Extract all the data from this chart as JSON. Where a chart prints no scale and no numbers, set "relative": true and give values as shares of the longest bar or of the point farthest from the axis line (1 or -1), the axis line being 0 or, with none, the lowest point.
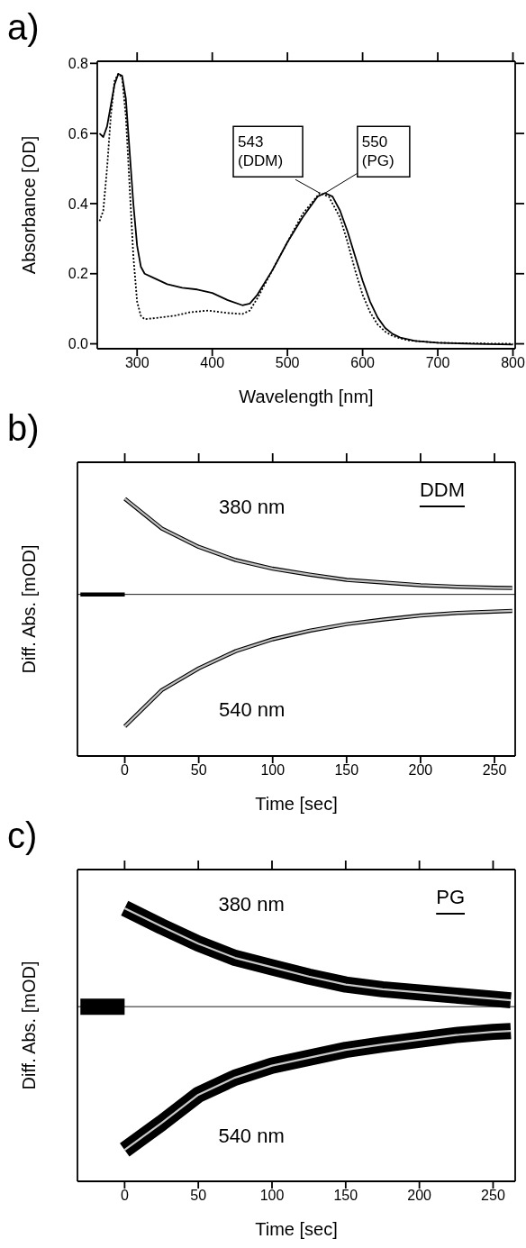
{
  "chart_data": [
    {
      "type": "line",
      "title": "a)",
      "xlabel": "Wavelength [nm]",
      "ylabel": "Absorbance [OD]",
      "xlim": [
        247,
        803
      ],
      "ylim": [
        -0.014,
        0.806
      ],
      "xticks": [
        300,
        400,
        500,
        600,
        700,
        800
      ],
      "yticks": [
        {
          "value": 0,
          "label": "0.0"
        },
        0.2,
        0.4,
        0.6,
        0.8
      ],
      "series": [
        {
          "color": "#000000",
          "line_style": "solid",
          "x": [
            250,
            255,
            260,
            265,
            270,
            275,
            280,
            285,
            290,
            295,
            300,
            305,
            310,
            320,
            340,
            360,
            380,
            400,
            420,
            440,
            450,
            460,
            480,
            500,
            520,
            540,
            550,
            560,
            570,
            580,
            590,
            600,
            610,
            620,
            630,
            640,
            650,
            670,
            700,
            750,
            800
          ],
          "values": [
            0.6,
            0.59,
            0.62,
            0.68,
            0.74,
            0.77,
            0.765,
            0.7,
            0.55,
            0.4,
            0.28,
            0.22,
            0.2,
            0.19,
            0.17,
            0.16,
            0.155,
            0.145,
            0.125,
            0.11,
            0.115,
            0.14,
            0.21,
            0.29,
            0.36,
            0.42,
            0.43,
            0.42,
            0.38,
            0.32,
            0.25,
            0.18,
            0.12,
            0.075,
            0.045,
            0.028,
            0.018,
            0.008,
            0.003,
            0.0,
            -0.002
          ]
        },
        {
          "color": "#000000",
          "line_style": "dotted",
          "x": [
            250,
            255,
            260,
            265,
            270,
            275,
            280,
            285,
            290,
            295,
            300,
            305,
            310,
            330,
            350,
            370,
            395,
            420,
            440,
            450,
            460,
            480,
            500,
            520,
            543,
            555,
            570,
            580,
            590,
            600,
            610,
            620,
            630,
            640,
            660,
            700,
            750,
            800
          ],
          "values": [
            0.35,
            0.38,
            0.5,
            0.65,
            0.75,
            0.77,
            0.76,
            0.65,
            0.45,
            0.25,
            0.12,
            0.08,
            0.07,
            0.075,
            0.08,
            0.09,
            0.095,
            0.088,
            0.085,
            0.095,
            0.13,
            0.21,
            0.29,
            0.37,
            0.43,
            0.42,
            0.36,
            0.29,
            0.21,
            0.14,
            0.09,
            0.055,
            0.035,
            0.022,
            0.01,
            0.003,
            0.001,
            0.0
          ]
        }
      ],
      "annotations": [
        {
          "text": "543\n(DDM)",
          "x": 543,
          "y": 0.43
        },
        {
          "text": "550\n(PG)",
          "x": 550,
          "y": 0.43
        }
      ]
    },
    {
      "type": "line",
      "title": "b)",
      "xlabel": "Time [sec]",
      "ylabel": "Diff. Abs. [mOD]",
      "relative": true,
      "xlim": [
        -32,
        264
      ],
      "xticks": [
        0,
        50,
        100,
        150,
        200,
        250
      ],
      "ref_lines": [
        {
          "axis": "y",
          "value": 0
        }
      ],
      "series": [
        {
          "color": "#000000",
          "x": [
            -30,
            0
          ],
          "values": [
            0,
            0
          ]
        },
        {
          "name": "380 nm",
          "color": "#000000",
          "x": [
            0,
            25,
            50,
            75,
            100,
            125,
            150,
            175,
            200,
            225,
            250,
            262
          ],
          "values": [
            0.725,
            0.5,
            0.36,
            0.26,
            0.195,
            0.15,
            0.11,
            0.09,
            0.07,
            0.058,
            0.05,
            0.048
          ]
        },
        {
          "name": "540 nm",
          "color": "#000000",
          "x": [
            0,
            25,
            50,
            75,
            100,
            125,
            150,
            175,
            200,
            225,
            250,
            262
          ],
          "values": [
            -1,
            -0.725,
            -0.56,
            -0.43,
            -0.34,
            -0.275,
            -0.225,
            -0.19,
            -0.16,
            -0.14,
            -0.13,
            -0.125
          ]
        },
        {
          "color": "#c0c0c0",
          "x": [
            0,
            25,
            50,
            75,
            100,
            125,
            150,
            175,
            200,
            225,
            250,
            262
          ],
          "values": [
            0.725,
            0.5,
            0.36,
            0.26,
            0.195,
            0.15,
            0.11,
            0.09,
            0.07,
            0.058,
            0.05,
            0.048
          ]
        },
        {
          "color": "#c0c0c0",
          "x": [
            0,
            25,
            50,
            75,
            100,
            125,
            150,
            175,
            200,
            225,
            250,
            262
          ],
          "values": [
            -1,
            -0.725,
            -0.56,
            -0.43,
            -0.34,
            -0.275,
            -0.225,
            -0.19,
            -0.16,
            -0.14,
            -0.13,
            -0.125
          ]
        }
      ],
      "annotations": [
        "DDM"
      ]
    },
    {
      "type": "line",
      "title": "c)",
      "xlabel": "Time [sec]",
      "ylabel": "Diff. Abs. [mOD]",
      "relative": true,
      "xlim": [
        -32,
        265
      ],
      "xticks": [
        0,
        50,
        100,
        150,
        200,
        250
      ],
      "ref_lines": [
        {
          "axis": "y",
          "value": 0
        }
      ],
      "series": [
        {
          "color": "#000000",
          "x": [
            -30,
            0
          ],
          "values": [
            0,
            0
          ]
        },
        {
          "name": "380 nm",
          "color": "#000000",
          "x": [
            0,
            25,
            50,
            75,
            100,
            125,
            150,
            175,
            200,
            225,
            250,
            262
          ],
          "values": [
            0.687,
            0.56,
            0.44,
            0.34,
            0.275,
            0.21,
            0.154,
            0.121,
            0.099,
            0.077,
            0.055,
            0.044
          ]
        },
        {
          "name": "540 nm",
          "color": "#000000",
          "x": [
            0,
            25,
            50,
            75,
            100,
            125,
            150,
            175,
            200,
            225,
            250,
            262
          ],
          "values": [
            -1,
            -0.813,
            -0.615,
            -0.495,
            -0.412,
            -0.357,
            -0.302,
            -0.264,
            -0.231,
            -0.198,
            -0.176,
            -0.17
          ]
        },
        {
          "color": "#c8c8c8",
          "x": [
            0,
            25,
            50,
            75,
            100,
            125,
            150,
            175,
            200,
            225,
            250,
            262
          ],
          "values": [
            0.687,
            0.56,
            0.44,
            0.34,
            0.275,
            0.21,
            0.154,
            0.121,
            0.099,
            0.077,
            0.055,
            0.044
          ]
        },
        {
          "color": "#c8c8c8",
          "x": [
            0,
            25,
            50,
            75,
            100,
            125,
            150,
            175,
            200,
            225,
            250,
            262
          ],
          "values": [
            -1,
            -0.813,
            -0.615,
            -0.495,
            -0.412,
            -0.357,
            -0.302,
            -0.264,
            -0.231,
            -0.198,
            -0.176,
            -0.17
          ]
        }
      ],
      "annotations": [
        "PG"
      ]
    }
  ]
}
